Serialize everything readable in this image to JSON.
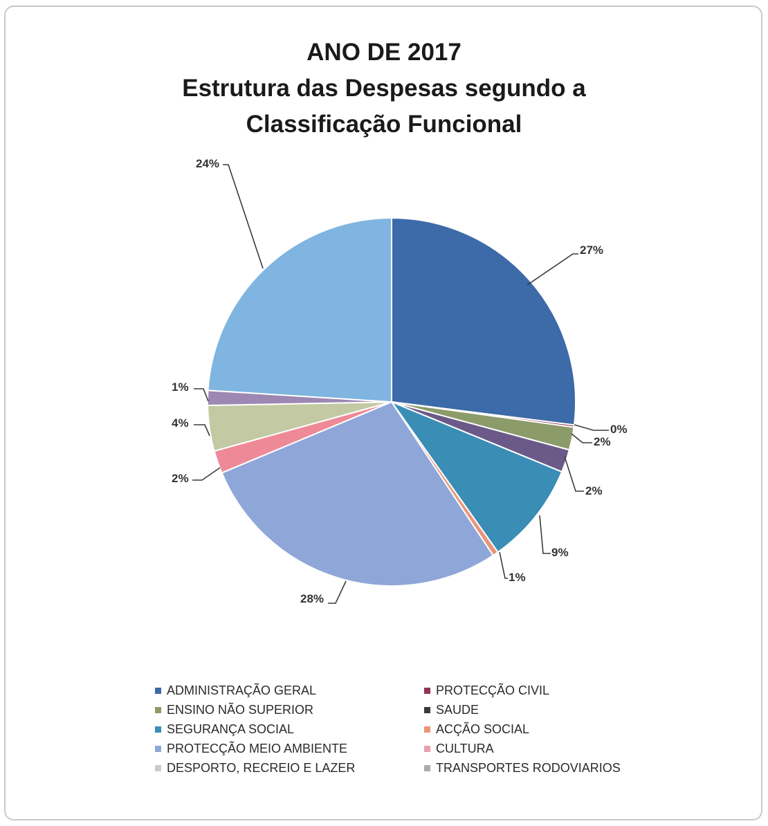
{
  "chart_data": {
    "type": "pie",
    "title": [
      "ANO DE 2017",
      "Estrutura das Despesas segundo a",
      "Classificação Funcional"
    ],
    "slices": [
      {
        "name": "ADMINISTRAÇÃO GERAL",
        "value": 27,
        "label": "27%",
        "color": "#3d6aa8"
      },
      {
        "name": "PROTECÇÃO CIVIL",
        "value": 0.2,
        "label": "0%",
        "color": "#8e3557"
      },
      {
        "name": "ENSINO NÃO SUPERIOR",
        "value": 2,
        "label": "2%",
        "color": "#8c9b6a"
      },
      {
        "name": "SAUDE",
        "value": 2,
        "label": "2%",
        "color": "#6b5a88"
      },
      {
        "name": "SEGURANÇA SOCIAL",
        "value": 9,
        "label": "9%",
        "color": "#3a8db5"
      },
      {
        "name": "ACÇÃO SOCIAL",
        "value": 0.5,
        "label": "1%",
        "color": "#e8957a"
      },
      {
        "name": "PROTECÇÃO MEIO AMBIENTE",
        "value": 28,
        "label": "28%",
        "color": "#8fa6d8"
      },
      {
        "name": "CULTURA",
        "value": 2,
        "label": "2%",
        "color": "#ee8a98"
      },
      {
        "name": "DESPORTO, RECREIO E LAZER",
        "value": 4,
        "label": "4%",
        "color": "#c3c9a3"
      },
      {
        "name": "TRANSPORTES RODOVIARIOS",
        "value": 1.3,
        "label": "1%",
        "color": "#9c88b2"
      },
      {
        "name": "",
        "value": 24,
        "label": "24%",
        "color": "#7fb5e0"
      }
    ],
    "legend": [
      {
        "label": "ADMINISTRAÇÃO GERAL",
        "color": "#3d6aa8"
      },
      {
        "label": "PROTECÇÃO CIVIL",
        "color": "#8e3557"
      },
      {
        "label": "ENSINO NÃO SUPERIOR",
        "color": "#8c9b6a"
      },
      {
        "label": "SAUDE",
        "color": "#3a3a3a"
      },
      {
        "label": "SEGURANÇA SOCIAL",
        "color": "#3a8db5"
      },
      {
        "label": "ACÇÃO SOCIAL",
        "color": "#e8957a"
      },
      {
        "label": "PROTECÇÃO MEIO AMBIENTE",
        "color": "#8fa6d8"
      },
      {
        "label": "CULTURA",
        "color": "#e8a0a8"
      },
      {
        "label": "DESPORTO, RECREIO E LAZER",
        "color": "#c9cccf"
      },
      {
        "label": "TRANSPORTES RODOVIARIOS",
        "color": "#a9abae"
      }
    ],
    "legend_position": "bottom"
  }
}
